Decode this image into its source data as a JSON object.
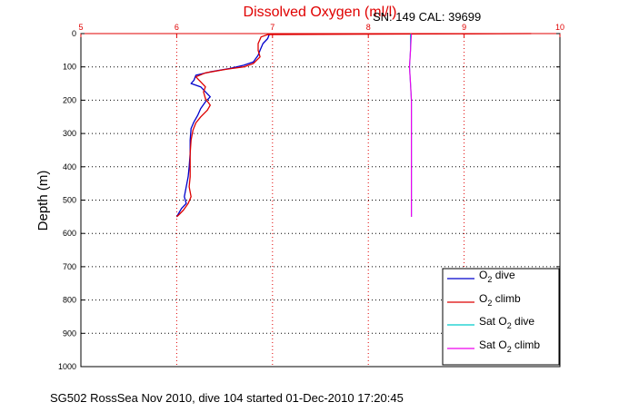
{
  "chart_data": {
    "type": "line",
    "title": "Dissolved Oxygen (ml/l)",
    "subtitle": "SN: 149  CAL: 39699",
    "xlabel": "",
    "ylabel": "Depth (m)",
    "caption": "SG502 RossSea Nov 2010, dive 104 started 01-Dec-2010 17:20:45",
    "xlim": [
      5,
      10
    ],
    "ylim": [
      0,
      1000
    ],
    "y_reversed": true,
    "x_axis_position": "top",
    "xticks": [
      5,
      6,
      7,
      8,
      9,
      10
    ],
    "yticks": [
      0,
      100,
      200,
      300,
      400,
      500,
      600,
      700,
      800,
      900,
      1000
    ],
    "grid": true,
    "legend_position": "bottom-right",
    "series": [
      {
        "name": "O2 dive",
        "legend_base": "O",
        "legend_sub": "2",
        "legend_suffix": " dive",
        "color": "#0000cc",
        "points": [
          [
            6.97,
            0
          ],
          [
            6.95,
            15
          ],
          [
            6.9,
            30
          ],
          [
            6.87,
            50
          ],
          [
            6.85,
            65
          ],
          [
            6.8,
            85
          ],
          [
            6.7,
            95
          ],
          [
            6.55,
            105
          ],
          [
            6.35,
            115
          ],
          [
            6.2,
            125
          ],
          [
            6.18,
            140
          ],
          [
            6.15,
            150
          ],
          [
            6.25,
            160
          ],
          [
            6.3,
            175
          ],
          [
            6.35,
            190
          ],
          [
            6.3,
            205
          ],
          [
            6.25,
            225
          ],
          [
            6.22,
            245
          ],
          [
            6.18,
            265
          ],
          [
            6.15,
            285
          ],
          [
            6.14,
            320
          ],
          [
            6.14,
            360
          ],
          [
            6.13,
            400
          ],
          [
            6.12,
            430
          ],
          [
            6.1,
            460
          ],
          [
            6.08,
            490
          ],
          [
            6.1,
            510
          ],
          [
            6.05,
            525
          ],
          [
            6.02,
            540
          ],
          [
            6.0,
            550
          ]
        ]
      },
      {
        "name": "O2 climb",
        "legend_base": "O",
        "legend_sub": "2",
        "legend_suffix": " climb",
        "color": "#dd0000",
        "points": [
          [
            9.7,
            0
          ],
          [
            6.95,
            3
          ],
          [
            6.88,
            10
          ],
          [
            6.85,
            30
          ],
          [
            6.85,
            50
          ],
          [
            6.87,
            70
          ],
          [
            6.8,
            90
          ],
          [
            6.7,
            100
          ],
          [
            6.5,
            108
          ],
          [
            6.3,
            118
          ],
          [
            6.2,
            130
          ],
          [
            6.25,
            145
          ],
          [
            6.3,
            160
          ],
          [
            6.28,
            175
          ],
          [
            6.3,
            195
          ],
          [
            6.35,
            215
          ],
          [
            6.32,
            230
          ],
          [
            6.25,
            250
          ],
          [
            6.2,
            268
          ],
          [
            6.17,
            290
          ],
          [
            6.15,
            320
          ],
          [
            6.14,
            360
          ],
          [
            6.14,
            400
          ],
          [
            6.14,
            430
          ],
          [
            6.13,
            460
          ],
          [
            6.15,
            490
          ],
          [
            6.12,
            510
          ],
          [
            6.07,
            530
          ],
          [
            6.02,
            545
          ],
          [
            6.0,
            550
          ]
        ]
      },
      {
        "name": "Sat O2 dive",
        "legend_base": "Sat O",
        "legend_sub": "2",
        "legend_suffix": " dive",
        "color": "#00cccc",
        "points": [
          [
            8.44,
            0
          ],
          [
            8.44,
            50
          ],
          [
            8.43,
            100
          ],
          [
            8.44,
            150
          ],
          [
            8.45,
            200
          ],
          [
            8.45,
            300
          ],
          [
            8.45,
            400
          ],
          [
            8.45,
            500
          ],
          [
            8.45,
            550
          ]
        ]
      },
      {
        "name": "Sat O2 climb",
        "legend_base": "Sat O",
        "legend_sub": "2",
        "legend_suffix": " climb",
        "color": "#ee00ee",
        "points": [
          [
            8.45,
            0
          ],
          [
            8.44,
            50
          ],
          [
            8.43,
            100
          ],
          [
            8.44,
            150
          ],
          [
            8.45,
            200
          ],
          [
            8.45,
            300
          ],
          [
            8.45,
            400
          ],
          [
            8.45,
            500
          ],
          [
            8.45,
            550
          ]
        ]
      }
    ]
  }
}
